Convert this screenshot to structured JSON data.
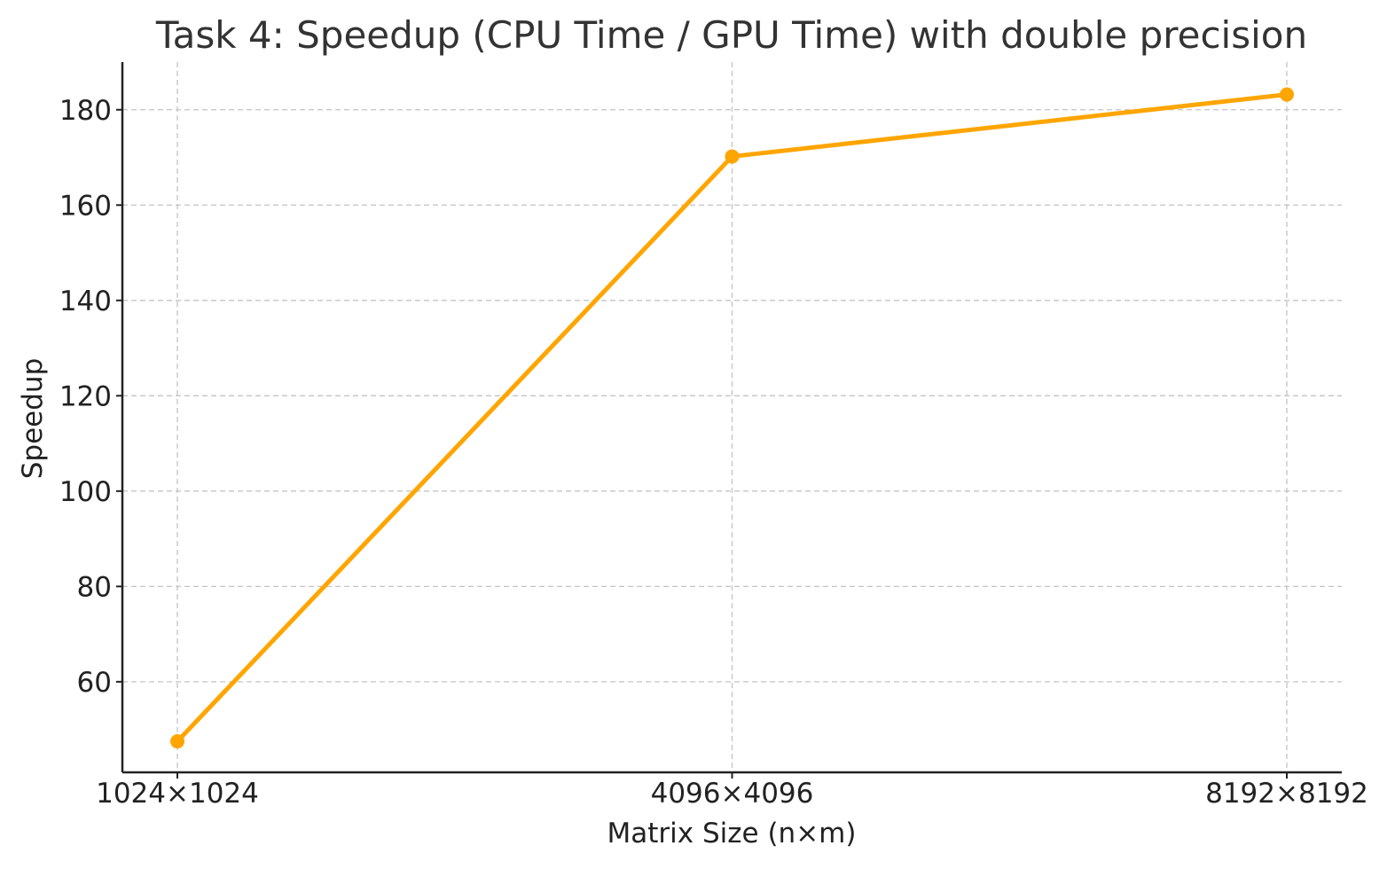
{
  "chart_data": {
    "type": "line",
    "title": "Task 4: Speedup (CPU Time / GPU Time) with double precision",
    "xlabel": "Matrix Size (n×m)",
    "ylabel": "Speedup",
    "categories": [
      "1024×1024",
      "4096×4096",
      "8192×8192"
    ],
    "series": [
      {
        "values": [
          47.5,
          170.2,
          183.2
        ],
        "color": "#FFA500"
      }
    ],
    "yticks": [
      60,
      80,
      100,
      120,
      140,
      160,
      180
    ],
    "ylim": [
      41,
      190
    ],
    "grid": true,
    "legend": "none",
    "marker": "circle"
  }
}
